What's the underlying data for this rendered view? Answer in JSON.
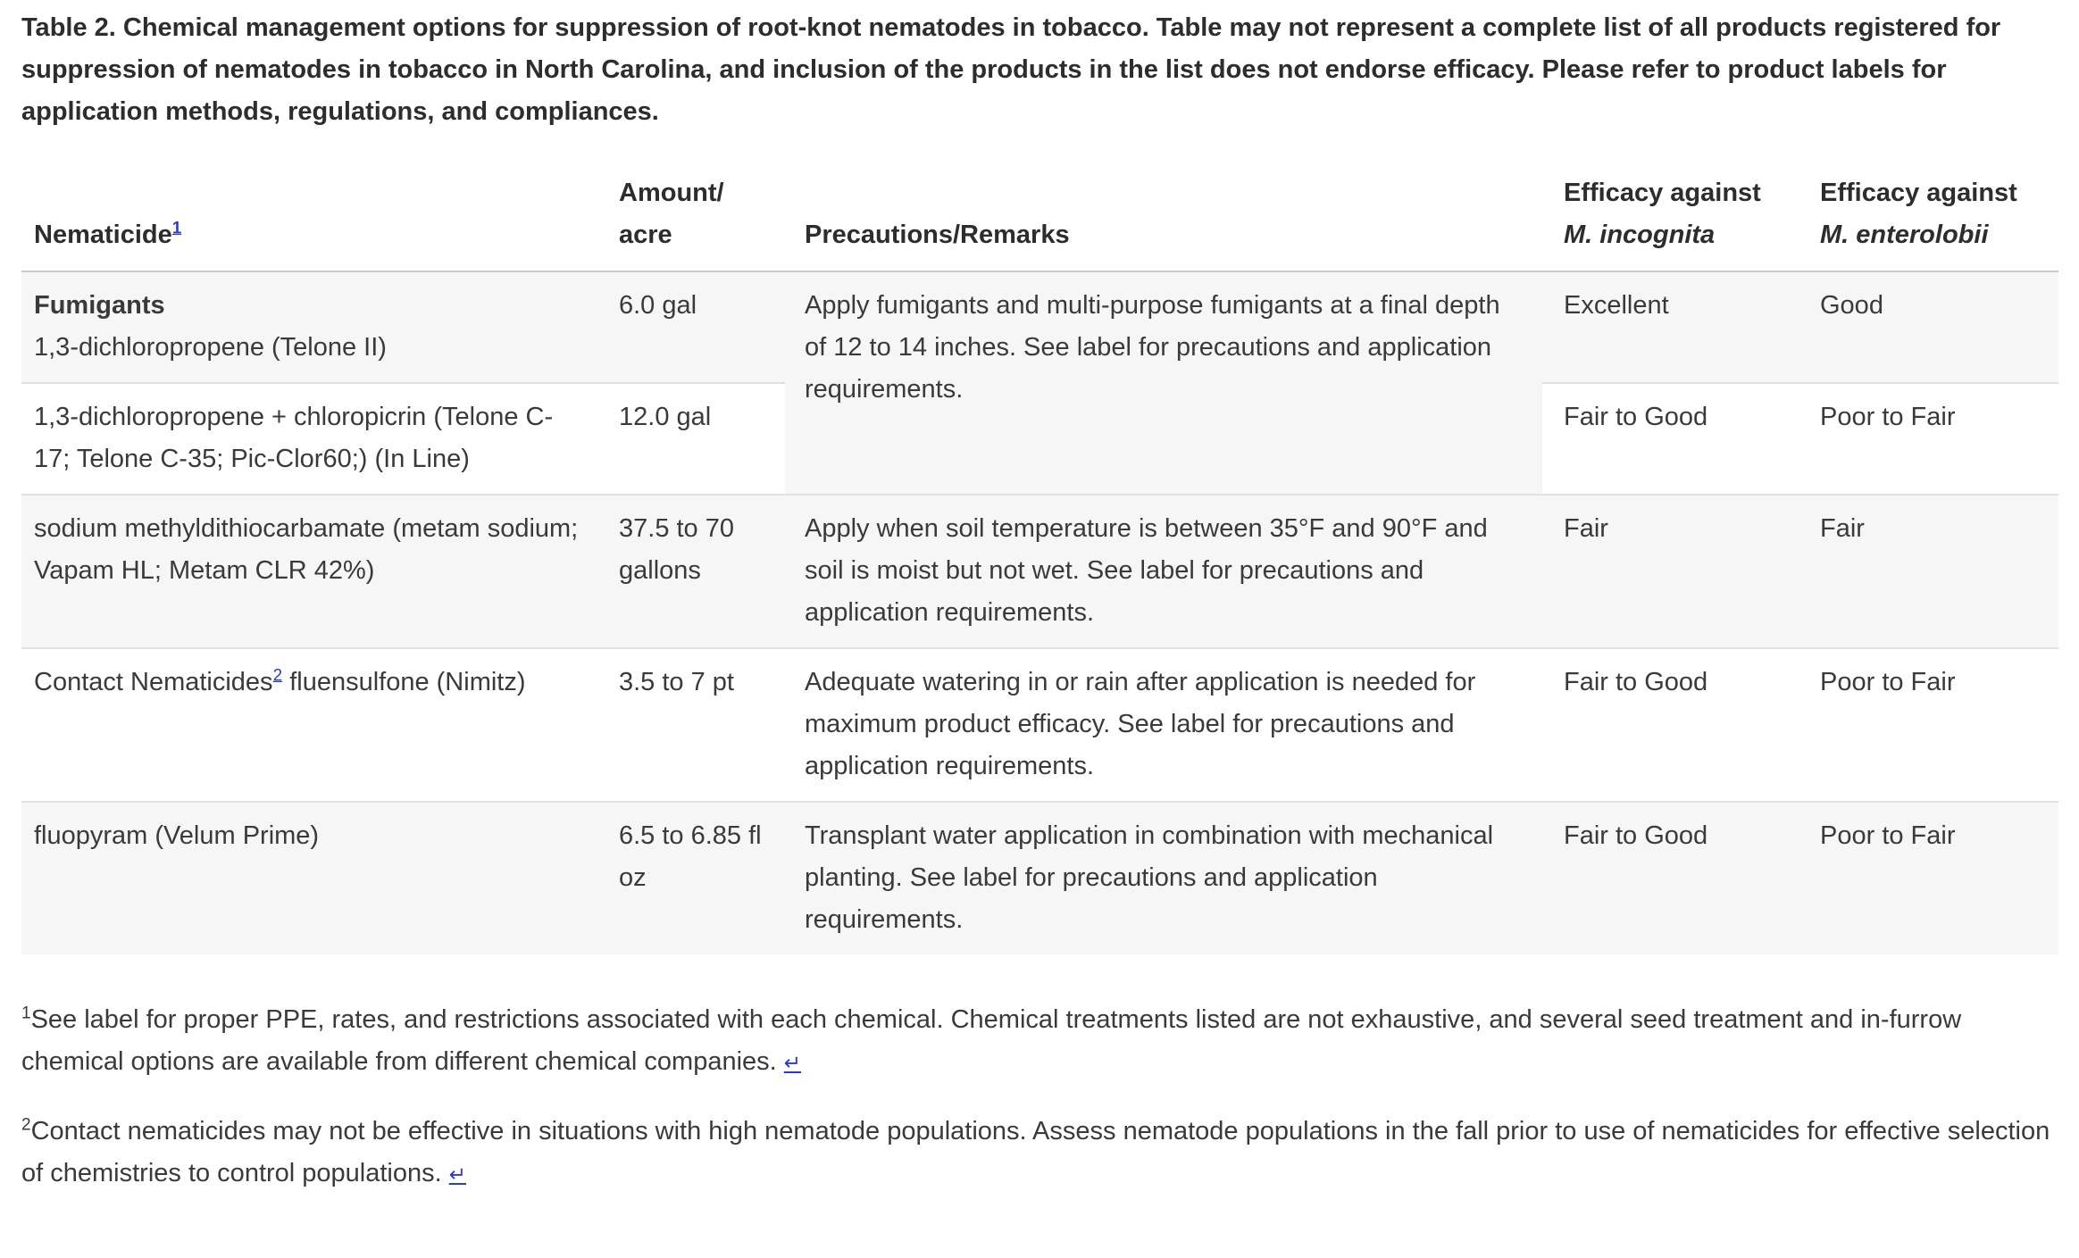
{
  "caption": "Table 2. Chemical management options for suppression of root-knot nematodes in tobacco. Table may not represent a complete list of all products registered for suppression of nematodes in tobacco in North Carolina, and inclusion of the products in the list does not endorse efficacy. Please refer to product labels for application methods, regulations, and compliances.",
  "table": {
    "headers": {
      "nematicide": {
        "label": "Nematicide",
        "sup": "1"
      },
      "amount": {
        "line1": "Amount/",
        "line2": "acre"
      },
      "precautions": {
        "label": "Precautions/Remarks"
      },
      "efficacy_incognita": {
        "line1": "Efficacy against",
        "species": "M. incognita"
      },
      "efficacy_enterolobii": {
        "line1": "Efficacy against",
        "species": "M. enterolobii"
      }
    },
    "rows": [
      {
        "group": "Fumigants",
        "nematicide": "1,3-dichloropropene (Telone II)",
        "amount": "6.0 gal",
        "remarks": "Apply fumigants and multi-purpose fumigants at a final depth of 12 to 14 inches. See label for precautions and application requirements.",
        "incognita": "Excellent",
        "enterolobii": "Good"
      },
      {
        "nematicide": "1,3-dichloropropene + chloropicrin (Telone C-17; Telone C-35; Pic-Clor60;) (In Line)",
        "amount": "12.0 gal",
        "incognita": "Fair to Good",
        "enterolobii": "Poor to Fair"
      },
      {
        "nematicide": "sodium methyldithiocarbamate (metam sodium; Vapam HL; Metam CLR 42%)",
        "amount": "37.5 to 70 gallons",
        "remarks": "Apply when soil temperature is between 35°F and 90°F and soil is moist but not wet. See label for precautions and application requirements.",
        "incognita": "Fair",
        "enterolobii": "Fair"
      },
      {
        "nematicide_prefix": "Contact Nematicides",
        "sup": "2",
        "nematicide_suffix": " fluensulfone (Nimitz)",
        "amount": "3.5 to 7 pt",
        "remarks": "Adequate watering in or rain after application is needed for maximum product efficacy. See label for precautions and application requirements.",
        "incognita": "Fair to Good",
        "enterolobii": "Poor to Fair"
      },
      {
        "nematicide": "fluopyram (Velum Prime)",
        "amount": "6.5 to 6.85 fl oz",
        "remarks": "Transplant water application in combination with mechanical planting. See label for precautions and application requirements.",
        "incognita": "Fair to Good",
        "enterolobii": "Poor to Fair"
      }
    ]
  },
  "footnotes": [
    {
      "sup": "1",
      "text": "See label for proper PPE, rates, and restrictions associated with each chemical. Chemical treatments listed are not exhaustive, and several seed treatment and in-furrow chemical options are available from different chemical companies. ",
      "backlink": "↵"
    },
    {
      "sup": "2",
      "text": "Contact nematicides may not be effective in situations with high nematode populations. Assess nematode populations in the fall prior to use of nematicides for effective selection of chemistries to control populations. ",
      "backlink": "↵"
    }
  ],
  "colors": {
    "link_blue": "#2a3ad2",
    "row_stripe": "#f6f6f6",
    "row_border": "#e1e1e1",
    "header_border": "#c9c9c9",
    "text": "#3a3a3a"
  }
}
